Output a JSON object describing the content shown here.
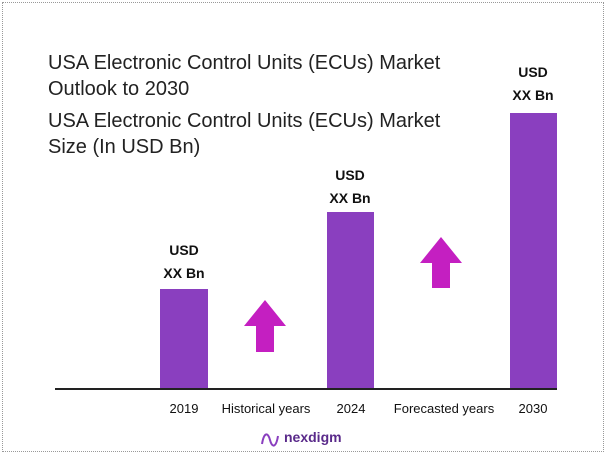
{
  "header": {
    "title": "USA Electronic Control Units (ECUs) Market Outlook to 2030",
    "subtitle": "USA Electronic Control Units (ECUs) Market Size (In USD Bn)"
  },
  "bars": [
    {
      "year": "2019",
      "label_top": "USD",
      "label_bottom": "XX Bn"
    },
    {
      "year": "2024",
      "label_top": "USD",
      "label_bottom": "XX Bn"
    },
    {
      "year": "2030",
      "label_top": "USD",
      "label_bottom": "XX Bn"
    }
  ],
  "phases": [
    "Historical years",
    "Forecasted years"
  ],
  "logo": "nexdigm"
}
